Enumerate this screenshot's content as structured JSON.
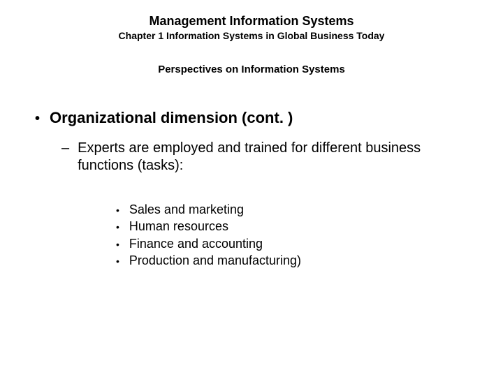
{
  "header": {
    "title_main": "Management Information Systems",
    "title_sub": "Chapter 1 Information Systems in Global Business Today"
  },
  "section_title": "Perspectives on Information Systems",
  "content": {
    "heading": "Organizational dimension (cont. )",
    "subheading": "Experts are employed and trained for different business functions (tasks):",
    "items": [
      "Sales and marketing",
      "Human resources",
      "Finance and accounting",
      "Production and manufacturing)"
    ]
  },
  "markers": {
    "bullet1": "•",
    "bullet2": "–",
    "bullet3": "•"
  }
}
